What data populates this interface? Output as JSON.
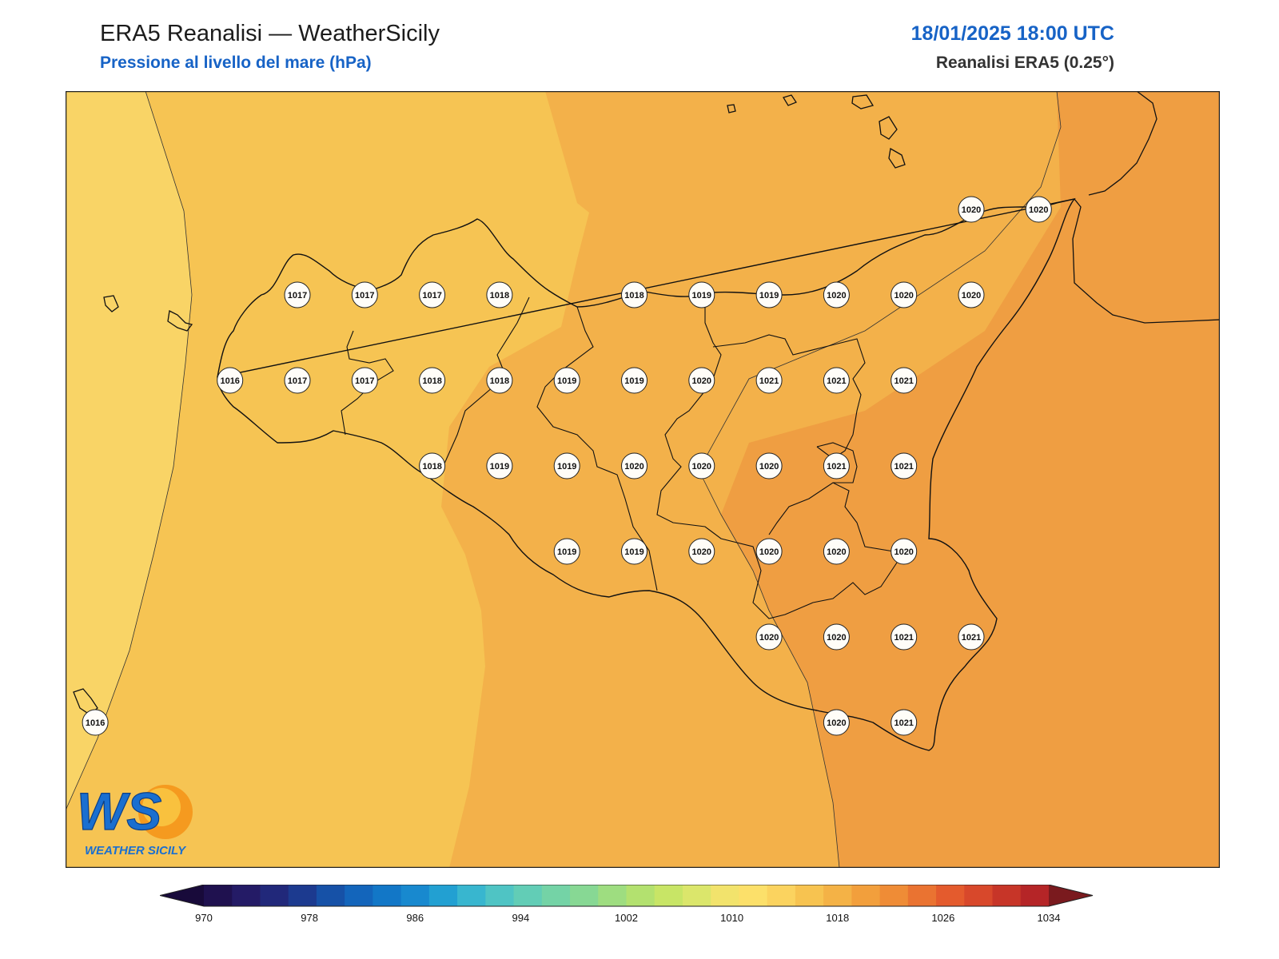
{
  "header": {
    "title": "ERA5 Reanalisi — WeatherSicily",
    "subtitle": "Pressione al livello del mare (hPa)",
    "datetime": "18/01/2025 18:00 UTC",
    "source": "Reanalisi ERA5 (0.25°)"
  },
  "logo": {
    "initials": "WS",
    "name": "WEATHER SICILY"
  },
  "colors": {
    "accent": "#1763c6",
    "band_1014_1016": "#f9d466",
    "band_1016_1018": "#f6c453",
    "band_1018_1020": "#f3b14a",
    "band_1020_1022": "#ef9e42"
  },
  "colorbar": {
    "tick_labels": [
      "970",
      "978",
      "986",
      "994",
      "1002",
      "1010",
      "1018",
      "1026",
      "1034"
    ],
    "colors": [
      "#1f114f",
      "#241b66",
      "#21287a",
      "#1c3a8f",
      "#1651a7",
      "#1365bb",
      "#1277c7",
      "#1889cf",
      "#22a0d2",
      "#38b6cf",
      "#4fc4c4",
      "#62cdb6",
      "#74d3a6",
      "#87d894",
      "#9edd80",
      "#b3e16f",
      "#c8e566",
      "#dbe66b",
      "#f2e36c",
      "#fce06a",
      "#fbd35f",
      "#f7c350",
      "#f4b246",
      "#f29f3c",
      "#ef8c36",
      "#ea7331",
      "#e45b2d",
      "#d8482b",
      "#c73528",
      "#b52527"
    ],
    "extend_low": "#180a3a",
    "extend_high": "#7a1a1e"
  },
  "stations": [
    {
      "col": 0,
      "row": 0,
      "value": "1017"
    },
    {
      "col": 1,
      "row": 0,
      "value": "1017"
    },
    {
      "col": 2,
      "row": 0,
      "value": "1017"
    },
    {
      "col": 3,
      "row": 0,
      "value": "1018"
    },
    {
      "col": 5,
      "row": 0,
      "value": "1018"
    },
    {
      "col": 6,
      "row": 0,
      "value": "1019"
    },
    {
      "col": 7,
      "row": 0,
      "value": "1019"
    },
    {
      "col": 8,
      "row": 0,
      "value": "1020"
    },
    {
      "col": 9,
      "row": 0,
      "value": "1020"
    },
    {
      "col": 10,
      "row": 0,
      "value": "1020"
    },
    {
      "col": -1,
      "row": 1,
      "value": "1016"
    },
    {
      "col": 0,
      "row": 1,
      "value": "1017"
    },
    {
      "col": 1,
      "row": 1,
      "value": "1017"
    },
    {
      "col": 2,
      "row": 1,
      "value": "1018"
    },
    {
      "col": 3,
      "row": 1,
      "value": "1018"
    },
    {
      "col": 4,
      "row": 1,
      "value": "1019"
    },
    {
      "col": 5,
      "row": 1,
      "value": "1019"
    },
    {
      "col": 6,
      "row": 1,
      "value": "1020"
    },
    {
      "col": 7,
      "row": 1,
      "value": "1021"
    },
    {
      "col": 8,
      "row": 1,
      "value": "1021"
    },
    {
      "col": 9,
      "row": 1,
      "value": "1021"
    },
    {
      "col": 2,
      "row": 2,
      "value": "1018"
    },
    {
      "col": 3,
      "row": 2,
      "value": "1019"
    },
    {
      "col": 4,
      "row": 2,
      "value": "1019"
    },
    {
      "col": 5,
      "row": 2,
      "value": "1020"
    },
    {
      "col": 6,
      "row": 2,
      "value": "1020"
    },
    {
      "col": 7,
      "row": 2,
      "value": "1020"
    },
    {
      "col": 8,
      "row": 2,
      "value": "1021"
    },
    {
      "col": 9,
      "row": 2,
      "value": "1021"
    },
    {
      "col": 4,
      "row": 3,
      "value": "1019"
    },
    {
      "col": 5,
      "row": 3,
      "value": "1019"
    },
    {
      "col": 6,
      "row": 3,
      "value": "1020"
    },
    {
      "col": 7,
      "row": 3,
      "value": "1020"
    },
    {
      "col": 8,
      "row": 3,
      "value": "1020"
    },
    {
      "col": 9,
      "row": 3,
      "value": "1020"
    },
    {
      "col": 7,
      "row": 4,
      "value": "1020"
    },
    {
      "col": 8,
      "row": 4,
      "value": "1020"
    },
    {
      "col": 9,
      "row": 4,
      "value": "1021"
    },
    {
      "col": 10,
      "row": 4,
      "value": "1021"
    },
    {
      "col": 8,
      "row": 5,
      "value": "1020"
    },
    {
      "col": 9,
      "row": 5,
      "value": "1021"
    },
    {
      "col": 10,
      "row": -1,
      "value": "1020"
    },
    {
      "col": 11,
      "row": -1,
      "value": "1020"
    },
    {
      "col": -3,
      "row": 5,
      "value": "1016"
    }
  ]
}
